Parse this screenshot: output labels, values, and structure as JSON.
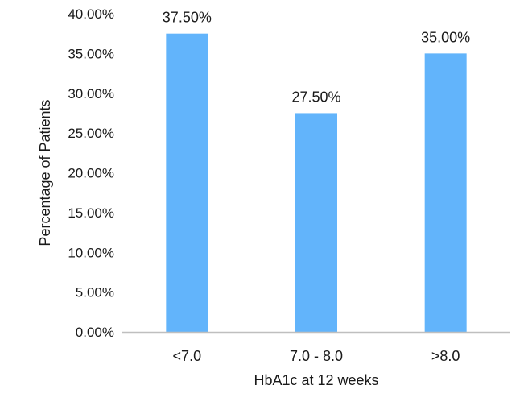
{
  "chart_data": {
    "type": "bar",
    "title": "",
    "xlabel": "HbA1c at 12 weeks",
    "ylabel": "Percentage of Patients",
    "categories": [
      "<7.0",
      "7.0 - 8.0",
      ">8.0"
    ],
    "values": [
      37.5,
      27.5,
      35.0
    ],
    "data_labels": [
      "37.50%",
      "27.50%",
      "35.00%"
    ],
    "ylim": [
      0,
      40
    ],
    "yticks": [
      0,
      5,
      10,
      15,
      20,
      25,
      30,
      35,
      40
    ],
    "ytick_labels": [
      "0.00%",
      "5.00%",
      "10.00%",
      "15.00%",
      "20.00%",
      "25.00%",
      "30.00%",
      "35.00%",
      "40.00%"
    ],
    "grid": false,
    "legend": "none",
    "bar_color": "#62b4fb",
    "axis_color": "#bfbfbf"
  }
}
